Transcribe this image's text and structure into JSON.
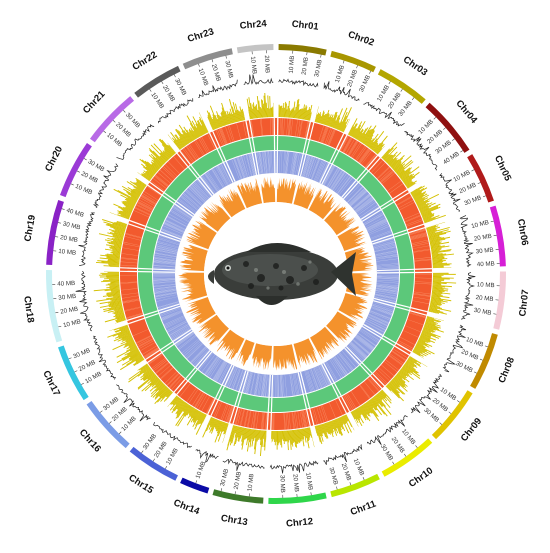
{
  "chromosomes": [
    {
      "label": "Chr01",
      "size_mb": 33,
      "color": "#8a7a00"
    },
    {
      "label": "Chr02",
      "size_mb": 32,
      "color": "#a89600"
    },
    {
      "label": "Chr03",
      "size_mb": 37,
      "color": "#b3a600"
    },
    {
      "label": "Chr04",
      "size_mb": 42,
      "color": "#8f1010"
    },
    {
      "label": "Chr05",
      "size_mb": 35,
      "color": "#b01a1a"
    },
    {
      "label": "Chr06",
      "size_mb": 42,
      "color": "#d61fd6"
    },
    {
      "label": "Chr07",
      "size_mb": 40,
      "color": "#f4cbd6"
    },
    {
      "label": "Chr08",
      "size_mb": 40,
      "color": "#c08a00"
    },
    {
      "label": "Chr09",
      "size_mb": 40,
      "color": "#e0c300"
    },
    {
      "label": "Chr10",
      "size_mb": 40,
      "color": "#eaec00"
    },
    {
      "label": "Chr11",
      "size_mb": 35,
      "color": "#b9e600"
    },
    {
      "label": "Chr12",
      "size_mb": 40,
      "color": "#2fd64a"
    },
    {
      "label": "Chr13",
      "size_mb": 35,
      "color": "#3e7a2a"
    },
    {
      "label": "Chr14",
      "size_mb": 20,
      "color": "#0a0aa6"
    },
    {
      "label": "Chr15",
      "size_mb": 37,
      "color": "#4b62d6"
    },
    {
      "label": "Chr16",
      "size_mb": 40,
      "color": "#7b9ce6"
    },
    {
      "label": "Chr17",
      "size_mb": 40,
      "color": "#35c6e0"
    },
    {
      "label": "Chr18",
      "size_mb": 50,
      "color": "#c8f0f4"
    },
    {
      "label": "Chr19",
      "size_mb": 45,
      "color": "#8a22c6"
    },
    {
      "label": "Chr20",
      "size_mb": 40,
      "color": "#9b3ad6"
    },
    {
      "label": "Chr21",
      "size_mb": 40,
      "color": "#b86ae6"
    },
    {
      "label": "Chr22",
      "size_mb": 35,
      "color": "#5a5a5a"
    },
    {
      "label": "Chr23",
      "size_mb": 35,
      "color": "#8e8e8e"
    },
    {
      "label": "Chr24",
      "size_mb": 25,
      "color": "#c4c4c4"
    }
  ],
  "tick_unit": "MB",
  "tick_step_mb": 10,
  "track_colors": {
    "line_track": "#222222",
    "yellow_track": "#d4c000",
    "red_track": "#f25a2e",
    "green_track": "#5cc87a",
    "blue_track": "#8f9fe0",
    "orange_track": "#f4922c",
    "gap_lines": "#ffffff"
  },
  "center_image": "grouper-fish"
}
